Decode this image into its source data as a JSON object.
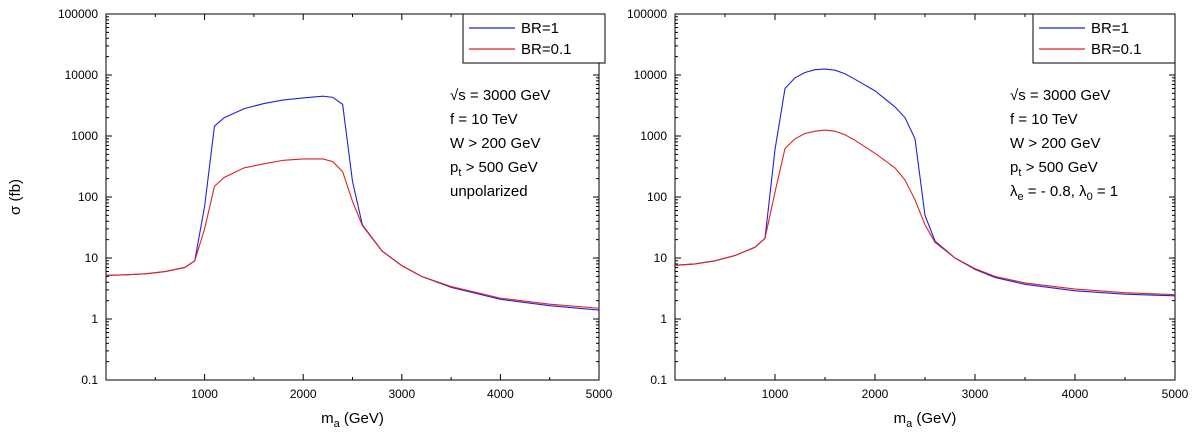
{
  "chart_data": [
    {
      "type": "line",
      "ylabel": "σ (fb)",
      "xlabel_base": "m",
      "xlabel_sub": "a",
      "xlabel_rest": " (GeV)",
      "xlim": [
        0,
        5000
      ],
      "ylim": [
        0.1,
        100000
      ],
      "yscale": "log",
      "x_ticks": [
        1000,
        2000,
        3000,
        4000,
        5000
      ],
      "x_tick_labels": [
        "1000",
        "2000",
        "3000",
        "4000",
        "5000"
      ],
      "y_ticks": [
        0.1,
        1,
        10,
        100,
        1000,
        10000,
        100000
      ],
      "y_tick_labels": [
        "0.1",
        "1",
        "10",
        "100",
        "1000",
        "10000",
        "100000"
      ],
      "legend_position": "top-right",
      "annotations": [
        "√s = 3000 GeV",
        "f = 10 TeV",
        "W > 200 GeV",
        "p|t| > 500 GeV",
        "unpolarized"
      ],
      "series": [
        {
          "name": "BR=1",
          "color": "#2222dd",
          "x": [
            0,
            200,
            400,
            600,
            800,
            900,
            1000,
            1100,
            1200,
            1400,
            1600,
            1800,
            2000,
            2200,
            2300,
            2400,
            2500,
            2600,
            2800,
            3000,
            3200,
            3500,
            4000,
            4500,
            5000
          ],
          "y": [
            5.2,
            5.3,
            5.5,
            6.0,
            7.0,
            9.0,
            70,
            1450,
            2000,
            2800,
            3400,
            3900,
            4200,
            4500,
            4300,
            3300,
            180,
            35,
            13,
            7.5,
            5.0,
            3.3,
            2.1,
            1.65,
            1.4
          ]
        },
        {
          "name": "BR=0.1",
          "color": "#dd2222",
          "x": [
            0,
            200,
            400,
            600,
            800,
            900,
            1000,
            1100,
            1200,
            1400,
            1600,
            1800,
            2000,
            2200,
            2300,
            2400,
            2500,
            2600,
            2800,
            3000,
            3200,
            3500,
            4000,
            4500,
            5000
          ],
          "y": [
            5.2,
            5.3,
            5.5,
            6.0,
            7.0,
            9.0,
            30,
            150,
            210,
            300,
            350,
            400,
            420,
            420,
            380,
            260,
            85,
            34,
            13,
            7.5,
            5.0,
            3.4,
            2.2,
            1.75,
            1.5
          ]
        }
      ]
    },
    {
      "type": "line",
      "ylabel": "",
      "xlabel_base": "m",
      "xlabel_sub": "a",
      "xlabel_rest": " (GeV)",
      "xlim": [
        0,
        5000
      ],
      "ylim": [
        0.1,
        100000
      ],
      "yscale": "log",
      "x_ticks": [
        1000,
        2000,
        3000,
        4000,
        5000
      ],
      "x_tick_labels": [
        "1000",
        "2000",
        "3000",
        "4000",
        "5000"
      ],
      "y_ticks": [
        0.1,
        1,
        10,
        100,
        1000,
        10000,
        100000
      ],
      "y_tick_labels": [
        "0.1",
        "1",
        "10",
        "100",
        "1000",
        "10000",
        "100000"
      ],
      "legend_position": "top-right",
      "annotations": [
        "√s = 3000 GeV",
        "f = 10 TeV",
        "W > 200 GeV",
        "p|t| > 500 GeV",
        "λ|e| = - 0.8,  λ|0| = 1"
      ],
      "series": [
        {
          "name": "BR=1",
          "color": "#2222dd",
          "x": [
            0,
            200,
            400,
            600,
            800,
            900,
            1000,
            1100,
            1200,
            1300,
            1400,
            1500,
            1600,
            1700,
            1800,
            2000,
            2200,
            2300,
            2400,
            2500,
            2600,
            2800,
            3000,
            3200,
            3500,
            4000,
            4500,
            5000
          ],
          "y": [
            7.6,
            8.0,
            9.0,
            11,
            15,
            21,
            600,
            6000,
            9000,
            11000,
            12200,
            12500,
            12000,
            10500,
            8500,
            5500,
            3000,
            2000,
            900,
            50,
            19,
            10,
            6.5,
            4.8,
            3.7,
            2.9,
            2.55,
            2.4
          ]
        },
        {
          "name": "BR=0.1",
          "color": "#dd2222",
          "x": [
            0,
            200,
            400,
            600,
            800,
            900,
            1000,
            1100,
            1200,
            1300,
            1400,
            1500,
            1600,
            1700,
            1800,
            2000,
            2200,
            2300,
            2400,
            2500,
            2600,
            2800,
            3000,
            3200,
            3500,
            4000,
            4500,
            5000
          ],
          "y": [
            7.6,
            8.0,
            9.0,
            11,
            15,
            21,
            120,
            620,
            900,
            1100,
            1200,
            1250,
            1200,
            1050,
            850,
            520,
            300,
            190,
            90,
            35,
            18,
            10,
            6.7,
            5.0,
            3.9,
            3.1,
            2.7,
            2.5
          ]
        }
      ]
    }
  ]
}
